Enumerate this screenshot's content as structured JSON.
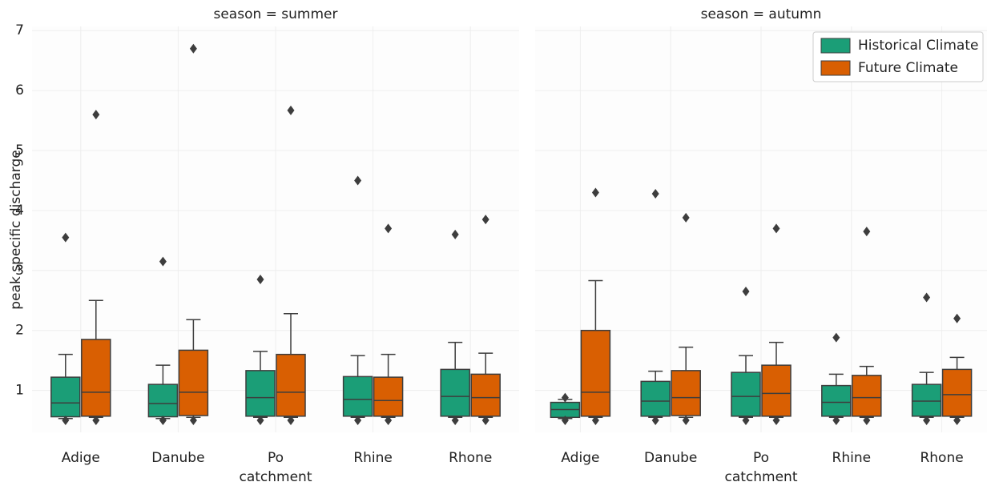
{
  "chart_data": [
    {
      "type": "box",
      "title": "season = summer",
      "xlabel": "catchment",
      "ylabel": "peak specific discharge",
      "categories": [
        "Adige",
        "Danube",
        "Po",
        "Rhine",
        "Rhone"
      ],
      "ylim": [
        0.3,
        7.07
      ],
      "yticks": [
        1,
        2,
        3,
        4,
        5,
        6,
        7
      ],
      "grid": true,
      "series": [
        {
          "color": "#1b9e77",
          "whisker_low": [
            0.53,
            0.53,
            0.55,
            0.55,
            0.55
          ],
          "q1": [
            0.56,
            0.56,
            0.57,
            0.57,
            0.57
          ],
          "median": [
            0.79,
            0.78,
            0.88,
            0.85,
            0.9
          ],
          "q3": [
            1.22,
            1.1,
            1.33,
            1.23,
            1.35
          ],
          "whisker_high": [
            1.6,
            1.42,
            1.65,
            1.58,
            1.8
          ],
          "outliers": [
            [
              3.55,
              0.5
            ],
            [
              3.15,
              0.5
            ],
            [
              2.85,
              0.5
            ],
            [
              4.5,
              0.5
            ],
            [
              3.6,
              0.5
            ]
          ]
        },
        {
          "color": "#d95f02",
          "whisker_low": [
            0.55,
            0.55,
            0.55,
            0.55,
            0.55
          ],
          "q1": [
            0.57,
            0.58,
            0.57,
            0.57,
            0.57
          ],
          "median": [
            0.97,
            0.97,
            0.97,
            0.83,
            0.88
          ],
          "q3": [
            1.85,
            1.67,
            1.6,
            1.22,
            1.27
          ],
          "whisker_high": [
            2.5,
            2.18,
            2.28,
            1.6,
            1.62
          ],
          "outliers": [
            [
              5.6,
              0.5
            ],
            [
              6.7,
              0.5
            ],
            [
              5.67,
              0.5
            ],
            [
              3.7,
              0.5
            ],
            [
              3.85,
              0.5
            ]
          ]
        }
      ]
    },
    {
      "type": "box",
      "title": "season = autumn",
      "xlabel": "catchment",
      "categories": [
        "Adige",
        "Danube",
        "Po",
        "Rhine",
        "Rhone"
      ],
      "ylim": [
        0.3,
        7.07
      ],
      "grid": true,
      "legend": "upper right",
      "series": [
        {
          "name": "Historical Climate",
          "color": "#1b9e77",
          "whisker_low": [
            0.53,
            0.55,
            0.55,
            0.55,
            0.55
          ],
          "q1": [
            0.55,
            0.57,
            0.57,
            0.57,
            0.57
          ],
          "median": [
            0.68,
            0.82,
            0.9,
            0.8,
            0.82
          ],
          "q3": [
            0.8,
            1.15,
            1.3,
            1.08,
            1.1
          ],
          "whisker_high": [
            0.85,
            1.32,
            1.58,
            1.27,
            1.3
          ],
          "outliers": [
            [
              0.88,
              0.5
            ],
            [
              4.28,
              0.5
            ],
            [
              2.65,
              0.5
            ],
            [
              1.88,
              0.5
            ],
            [
              2.55,
              0.5
            ]
          ]
        },
        {
          "name": "Future Climate",
          "color": "#d95f02",
          "whisker_low": [
            0.55,
            0.55,
            0.55,
            0.55,
            0.55
          ],
          "q1": [
            0.57,
            0.58,
            0.57,
            0.57,
            0.57
          ],
          "median": [
            0.97,
            0.88,
            0.95,
            0.88,
            0.93
          ],
          "q3": [
            2.0,
            1.33,
            1.42,
            1.25,
            1.35
          ],
          "whisker_high": [
            2.83,
            1.72,
            1.8,
            1.4,
            1.55
          ],
          "outliers": [
            [
              4.3,
              0.5
            ],
            [
              3.88,
              0.5
            ],
            [
              3.7,
              0.5
            ],
            [
              3.65,
              0.5
            ],
            [
              2.2,
              0.5
            ]
          ]
        }
      ]
    }
  ]
}
